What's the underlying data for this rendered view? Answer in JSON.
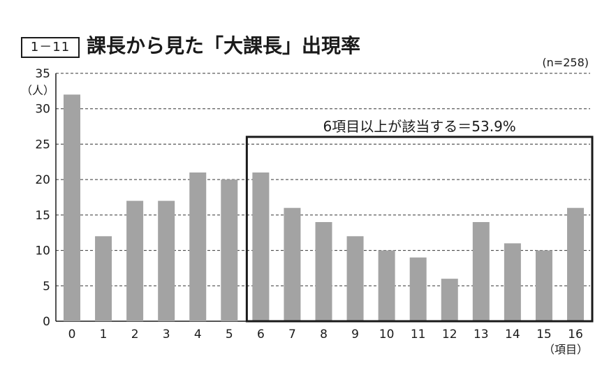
{
  "figure": {
    "label": "1－11",
    "title": "課長から見た「大課長」出現率"
  },
  "chart_data": {
    "type": "bar",
    "categories": [
      "0",
      "1",
      "2",
      "3",
      "4",
      "5",
      "6",
      "7",
      "8",
      "9",
      "10",
      "11",
      "12",
      "13",
      "14",
      "15",
      "16"
    ],
    "values": [
      32,
      12,
      17,
      17,
      21,
      20,
      21,
      16,
      14,
      12,
      10,
      9,
      6,
      14,
      11,
      10,
      16
    ],
    "ylim": [
      0,
      35
    ],
    "yticks": [
      0,
      5,
      10,
      15,
      20,
      25,
      30,
      35
    ],
    "ylabel": "（人）",
    "xlabel": "（項目）",
    "sample_note": "(n=258)",
    "grid": "horizontal dashed",
    "bar_color": "#a3a3a3",
    "highlight": {
      "from_category": "6",
      "to_category": "16",
      "label": "6項目以上が該当する＝53.9%"
    }
  }
}
